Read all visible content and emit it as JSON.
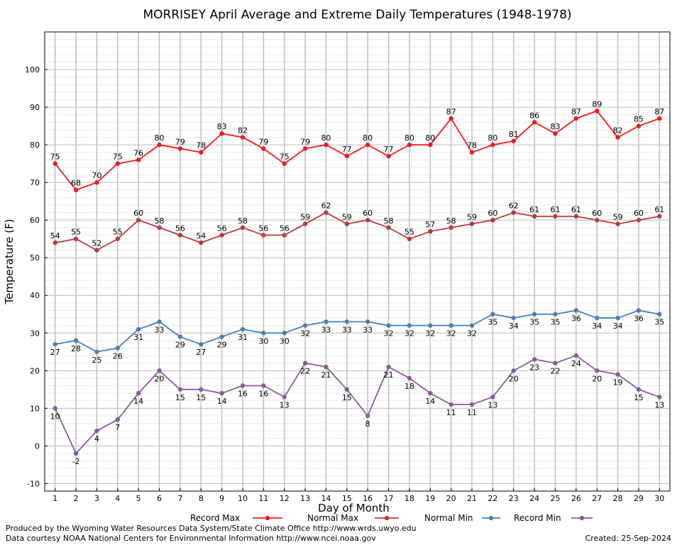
{
  "chart_data": {
    "type": "line",
    "title": "MORRISEY April Average and Extreme Daily Temperatures (1948-1978)",
    "xlabel": "Day of Month",
    "ylabel": "Temperature (F)",
    "x": [
      1,
      2,
      3,
      4,
      5,
      6,
      7,
      8,
      9,
      10,
      11,
      12,
      13,
      14,
      15,
      16,
      17,
      18,
      19,
      20,
      21,
      22,
      23,
      24,
      25,
      26,
      27,
      28,
      29,
      30
    ],
    "ylim": [
      -12,
      110
    ],
    "xlim": [
      0.5,
      30.5
    ],
    "y_ticks": [
      -10,
      0,
      10,
      20,
      30,
      40,
      50,
      60,
      70,
      80,
      90,
      100
    ],
    "grid": true,
    "legend_position": "bottom",
    "series": [
      {
        "name": "Record Max",
        "color": "#ee1c1c",
        "values": [
          75,
          68,
          70,
          75,
          76,
          80,
          79,
          78,
          83,
          82,
          79,
          75,
          79,
          80,
          77,
          80,
          77,
          80,
          80,
          87,
          78,
          80,
          81,
          86,
          83,
          87,
          89,
          82,
          85,
          87
        ]
      },
      {
        "name": "Normal Max",
        "color": "#bb3a3a",
        "values": [
          54,
          55,
          52,
          55,
          60,
          58,
          56,
          54,
          56,
          58,
          56,
          56,
          59,
          62,
          59,
          60,
          58,
          55,
          57,
          58,
          59,
          60,
          62,
          61,
          61,
          61,
          60,
          59,
          60,
          61
        ]
      },
      {
        "name": "Normal Min",
        "color": "#4a7fb5",
        "values": [
          27,
          28,
          25,
          26,
          31,
          33,
          29,
          27,
          29,
          31,
          30,
          30,
          32,
          33,
          33,
          33,
          32,
          32,
          32,
          32,
          32,
          35,
          34,
          35,
          35,
          36,
          34,
          34,
          36,
          35
        ]
      },
      {
        "name": "Record Min",
        "color": "#8c5a9c",
        "values": [
          10,
          -2,
          4,
          7,
          14,
          20,
          15,
          15,
          14,
          16,
          16,
          13,
          22,
          21,
          15,
          8,
          21,
          18,
          14,
          11,
          11,
          13,
          20,
          23,
          22,
          24,
          20,
          19,
          15,
          13
        ]
      }
    ]
  },
  "footer": {
    "produced_by": "Produced by the Wyoming Water Resources Data System/State Climate Office http://www.wrds.uwyo.edu",
    "data_courtesy": "Data courtesy NOAA National Centers for Environmental Information http://www.ncei.noaa.gov",
    "created": "Created:  25-Sep-2024"
  }
}
